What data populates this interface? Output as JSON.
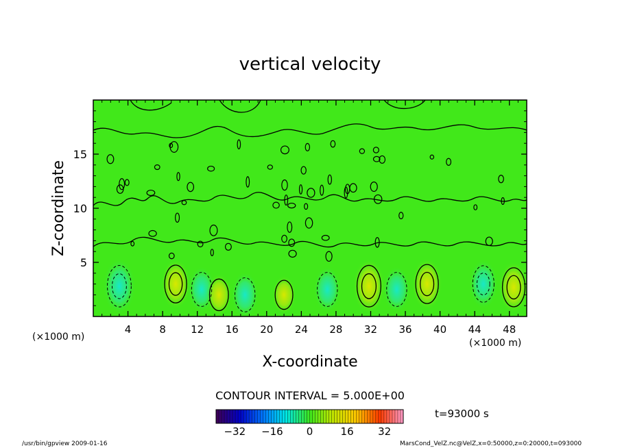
{
  "chart_data": {
    "type": "heatmap",
    "title": "vertical velocity",
    "xlabel": "X-coordinate",
    "ylabel": "Z-coordinate",
    "x_unit": "(×1000 m)",
    "y_unit": "(×1000 m)",
    "xlim": [
      0,
      50
    ],
    "ylim": [
      0,
      20
    ],
    "x_ticks": [
      "4",
      "8",
      "12",
      "16",
      "20",
      "24",
      "28",
      "32",
      "36",
      "40",
      "44",
      "48"
    ],
    "y_ticks": [
      "5",
      "10",
      "15"
    ],
    "x_tick_values": [
      4,
      8,
      12,
      16,
      20,
      24,
      28,
      32,
      36,
      40,
      44,
      48
    ],
    "y_tick_values": [
      5,
      10,
      15
    ],
    "contour_interval_text": "CONTOUR INTERVAL = 5.000E+00",
    "time_label": "t=93000 s",
    "colorbar": {
      "range": [
        -40,
        40
      ],
      "ticks": [
        "−32",
        "−16",
        "0",
        "16",
        "32"
      ],
      "tick_values": [
        -32,
        -16,
        0,
        16,
        32
      ]
    },
    "features": [
      {
        "x": 3.0,
        "z": 2.8,
        "value": -12
      },
      {
        "x": 9.5,
        "z": 3.0,
        "value": 9
      },
      {
        "x": 12.5,
        "z": 2.5,
        "value": -6
      },
      {
        "x": 14.5,
        "z": 2.0,
        "value": 4
      },
      {
        "x": 17.5,
        "z": 2.0,
        "value": -6
      },
      {
        "x": 22.0,
        "z": 2.0,
        "value": 2
      },
      {
        "x": 27.0,
        "z": 2.5,
        "value": -6
      },
      {
        "x": 31.8,
        "z": 2.8,
        "value": 12
      },
      {
        "x": 35.0,
        "z": 2.5,
        "value": -6
      },
      {
        "x": 38.5,
        "z": 3.0,
        "value": 10
      },
      {
        "x": 45.0,
        "z": 3.0,
        "value": -8
      },
      {
        "x": 48.5,
        "z": 2.7,
        "value": 10
      }
    ]
  },
  "footer": {
    "left": "/usr/bin/gpview   2009-01-16",
    "right": "MarsCond_VelZ.nc@VelZ,x=0:50000,z=0:20000,t=093000"
  },
  "colors": {
    "background_field": "#41e81a",
    "contour_line": "#000000"
  }
}
